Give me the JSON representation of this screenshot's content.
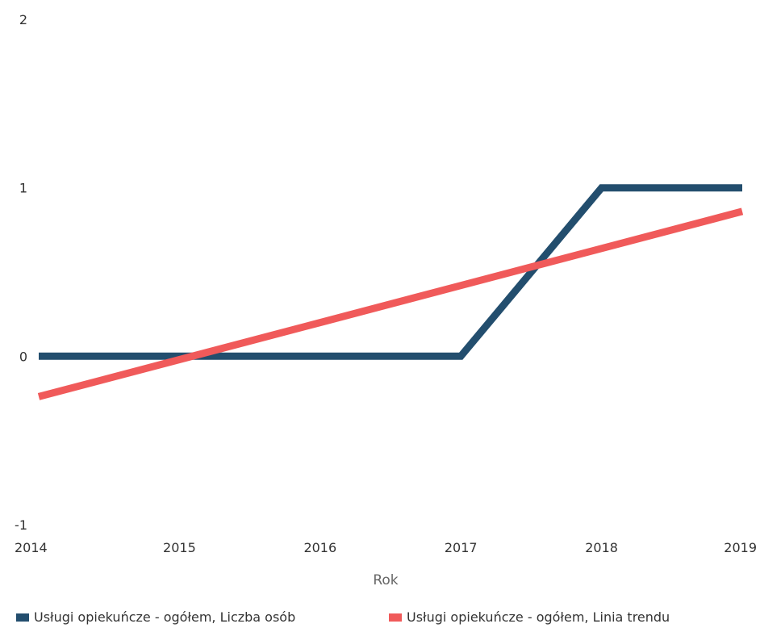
{
  "chart_data": {
    "type": "line",
    "title": "",
    "xlabel": "Rok",
    "ylabel": "",
    "x": [
      2014,
      2015,
      2016,
      2017,
      2018,
      2019
    ],
    "xlim": [
      2014,
      2019
    ],
    "ylim": [
      -1,
      2
    ],
    "y_ticks": [
      2,
      1,
      0,
      -1
    ],
    "grid": false,
    "legend_position": "bottom",
    "series": [
      {
        "name": "Usługi opiekuńcze - ogółem, Liczba osób",
        "color": "#234e6e",
        "values": [
          0,
          0,
          0,
          0,
          1,
          1
        ]
      },
      {
        "name": "Usługi opiekuńcze - ogółem, Linia trendu",
        "color": "#f05a5a",
        "values": [
          -0.24,
          -0.02,
          0.2,
          0.42,
          0.64,
          0.86
        ]
      }
    ]
  }
}
